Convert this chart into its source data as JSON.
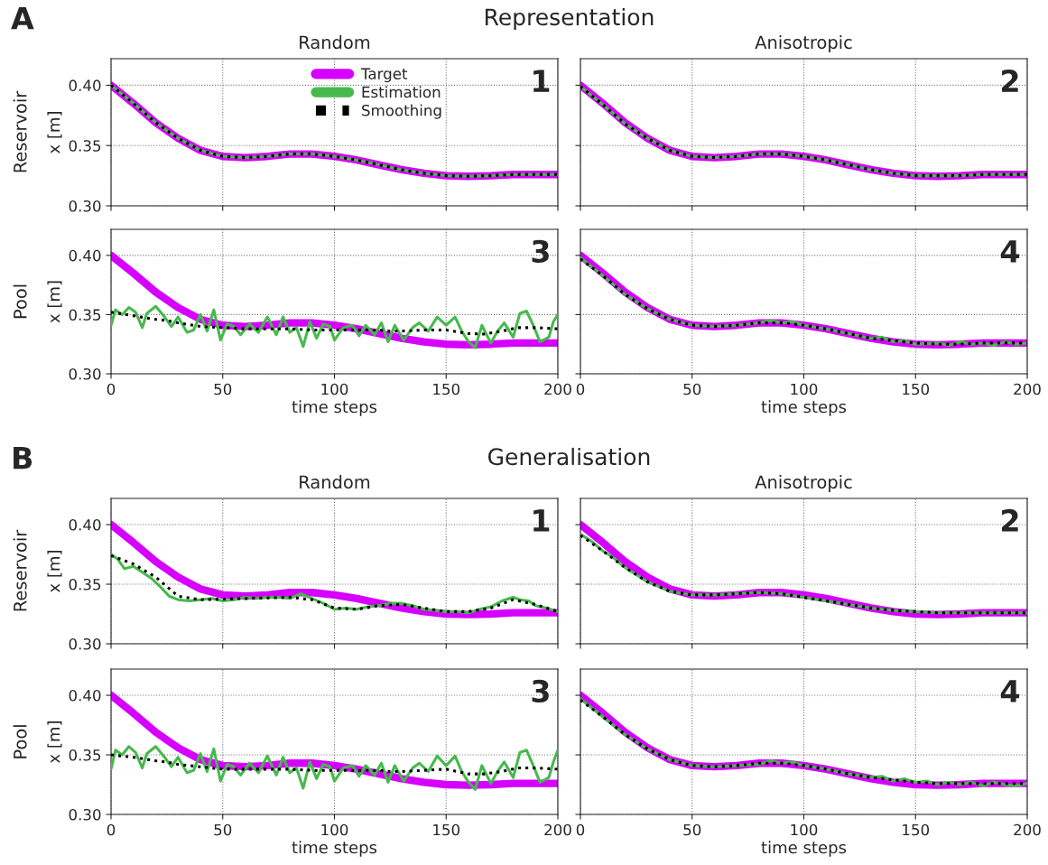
{
  "chart_data": [
    {
      "type": "line",
      "title": "Random",
      "ylabel": "x [m]",
      "annotations": [
        "1",
        "Reservoir",
        "A",
        "Representation"
      ],
      "xlim": [
        0,
        200
      ],
      "xticks": [
        0,
        50,
        100,
        150,
        200
      ],
      "ylim": [
        0.3,
        0.422
      ],
      "yticks": [
        {
          "value": 0.3,
          "label": "0.30"
        },
        {
          "value": 0.35,
          "label": "0.35"
        },
        {
          "value": 0.4,
          "label": "0.40"
        }
      ],
      "grid": true,
      "tick_labels": "y",
      "legend": "top",
      "series": [
        {
          "name": "Target",
          "color": "#d600ff",
          "line_style": "solid",
          "x": [
            0,
            10,
            20,
            30,
            40,
            50,
            60,
            70,
            80,
            90,
            100,
            110,
            120,
            130,
            140,
            150,
            160,
            170,
            180,
            190,
            200
          ],
          "values": [
            0.4,
            0.385,
            0.369,
            0.356,
            0.346,
            0.341,
            0.34,
            0.341,
            0.343,
            0.343,
            0.341,
            0.338,
            0.334,
            0.33,
            0.327,
            0.325,
            0.3245,
            0.325,
            0.326,
            0.326,
            0.326
          ]
        },
        {
          "name": "Estimation",
          "color": "#46b94c",
          "line_style": "solid",
          "x": [
            0,
            10,
            20,
            30,
            40,
            50,
            60,
            70,
            80,
            90,
            100,
            110,
            120,
            130,
            140,
            150,
            160,
            170,
            180,
            190,
            200
          ],
          "values": [
            0.4,
            0.385,
            0.369,
            0.356,
            0.346,
            0.341,
            0.34,
            0.341,
            0.343,
            0.343,
            0.341,
            0.338,
            0.334,
            0.33,
            0.327,
            0.325,
            0.3245,
            0.325,
            0.326,
            0.326,
            0.326
          ]
        },
        {
          "name": "Smoothing",
          "color": "#000000",
          "line_style": "dotted",
          "x": [
            0,
            10,
            20,
            30,
            40,
            50,
            60,
            70,
            80,
            90,
            100,
            110,
            120,
            130,
            140,
            150,
            160,
            170,
            180,
            190,
            200
          ],
          "values": [
            0.4,
            0.385,
            0.369,
            0.356,
            0.346,
            0.341,
            0.34,
            0.341,
            0.343,
            0.343,
            0.341,
            0.338,
            0.334,
            0.33,
            0.327,
            0.325,
            0.3245,
            0.325,
            0.326,
            0.326,
            0.326
          ]
        }
      ]
    },
    {
      "type": "line",
      "title": "Anisotropic",
      "annotations": [
        "2"
      ],
      "xlim": [
        0,
        200
      ],
      "xticks": [
        0,
        50,
        100,
        150,
        200
      ],
      "ylim": [
        0.3,
        0.422
      ],
      "yticks": [
        {
          "value": 0.3,
          "label": null
        },
        {
          "value": 0.35,
          "label": null
        },
        {
          "value": 0.4,
          "label": null
        }
      ],
      "grid": true,
      "tick_labels": false,
      "series": [
        {
          "color": "#d600ff",
          "line_style": "solid",
          "x": [
            0,
            10,
            20,
            30,
            40,
            50,
            60,
            70,
            80,
            90,
            100,
            110,
            120,
            130,
            140,
            150,
            160,
            170,
            180,
            190,
            200
          ],
          "values": [
            0.4,
            0.385,
            0.369,
            0.356,
            0.346,
            0.341,
            0.34,
            0.341,
            0.343,
            0.343,
            0.341,
            0.338,
            0.334,
            0.33,
            0.327,
            0.325,
            0.3245,
            0.325,
            0.326,
            0.326,
            0.326
          ]
        },
        {
          "color": "#46b94c",
          "line_style": "solid",
          "x": [
            0,
            10,
            20,
            30,
            40,
            50,
            60,
            70,
            80,
            90,
            100,
            110,
            120,
            130,
            140,
            150,
            160,
            170,
            180,
            190,
            200
          ],
          "values": [
            0.399,
            0.384,
            0.368,
            0.356,
            0.346,
            0.341,
            0.34,
            0.341,
            0.343,
            0.343,
            0.341,
            0.338,
            0.334,
            0.33,
            0.327,
            0.325,
            0.325,
            0.325,
            0.326,
            0.326,
            0.326
          ]
        },
        {
          "color": "#000000",
          "line_style": "dotted",
          "x": [
            0,
            10,
            20,
            30,
            40,
            50,
            60,
            70,
            80,
            90,
            100,
            110,
            120,
            130,
            140,
            150,
            160,
            170,
            180,
            190,
            200
          ],
          "values": [
            0.399,
            0.384,
            0.368,
            0.356,
            0.346,
            0.341,
            0.34,
            0.341,
            0.343,
            0.343,
            0.341,
            0.338,
            0.334,
            0.33,
            0.327,
            0.325,
            0.325,
            0.325,
            0.326,
            0.326,
            0.326
          ]
        }
      ]
    },
    {
      "type": "line",
      "xlabel": "time steps",
      "ylabel": "x [m]",
      "annotations": [
        "3",
        "Pool"
      ],
      "xlim": [
        0,
        200
      ],
      "xticks": [
        0,
        50,
        100,
        150,
        200
      ],
      "ylim": [
        0.3,
        0.422
      ],
      "yticks": [
        {
          "value": 0.3,
          "label": "0.30"
        },
        {
          "value": 0.35,
          "label": "0.35"
        },
        {
          "value": 0.4,
          "label": "0.40"
        }
      ],
      "grid": true,
      "series": [
        {
          "color": "#d600ff",
          "line_style": "solid",
          "x": [
            0,
            10,
            20,
            30,
            40,
            50,
            60,
            70,
            80,
            90,
            100,
            110,
            120,
            130,
            140,
            150,
            160,
            170,
            180,
            190,
            200
          ],
          "values": [
            0.4,
            0.385,
            0.369,
            0.356,
            0.346,
            0.341,
            0.34,
            0.341,
            0.343,
            0.343,
            0.341,
            0.338,
            0.334,
            0.33,
            0.327,
            0.325,
            0.3245,
            0.325,
            0.326,
            0.326,
            0.326
          ]
        },
        {
          "color": "#46b94c",
          "line_style": "solid",
          "x": [
            0,
            2,
            5,
            8,
            11,
            14,
            16,
            20,
            24,
            27,
            30,
            34,
            37,
            40,
            43,
            46,
            49,
            52,
            55,
            58,
            62,
            66,
            70,
            74,
            77,
            80,
            83,
            86,
            89,
            92,
            95,
            98,
            100,
            104,
            108,
            111,
            114,
            118,
            121,
            124,
            127,
            131,
            135,
            138,
            142,
            146,
            150,
            154,
            157,
            160,
            163,
            166,
            170,
            173,
            176,
            180,
            183,
            186,
            189,
            192,
            196,
            198,
            200
          ],
          "values": [
            0.341,
            0.354,
            0.35,
            0.356,
            0.352,
            0.339,
            0.351,
            0.357,
            0.348,
            0.34,
            0.348,
            0.335,
            0.337,
            0.35,
            0.336,
            0.354,
            0.3285,
            0.342,
            0.34,
            0.333,
            0.342,
            0.335,
            0.348,
            0.333,
            0.348,
            0.335,
            0.339,
            0.323,
            0.344,
            0.33,
            0.342,
            0.34,
            0.3285,
            0.339,
            0.341,
            0.332,
            0.341,
            0.333,
            0.343,
            0.327,
            0.341,
            0.3285,
            0.339,
            0.343,
            0.336,
            0.348,
            0.341,
            0.348,
            0.336,
            0.327,
            0.322,
            0.341,
            0.326,
            0.336,
            0.343,
            0.331,
            0.351,
            0.353,
            0.341,
            0.327,
            0.331,
            0.344,
            0.35
          ]
        },
        {
          "color": "#000000",
          "line_style": "dotted",
          "x": [
            0,
            10,
            20,
            25,
            30,
            40,
            50,
            60,
            70,
            80,
            90,
            100,
            110,
            120,
            125,
            130,
            140,
            150,
            160,
            167,
            175,
            182,
            190,
            200
          ],
          "values": [
            0.352,
            0.349,
            0.346,
            0.345,
            0.343,
            0.34,
            0.339,
            0.338,
            0.338,
            0.338,
            0.337,
            0.337,
            0.337,
            0.337,
            0.336,
            0.336,
            0.337,
            0.337,
            0.334,
            0.3336,
            0.336,
            0.339,
            0.339,
            0.338
          ]
        }
      ]
    },
    {
      "type": "line",
      "xlabel": "time steps",
      "annotations": [
        "4"
      ],
      "xlim": [
        0,
        200
      ],
      "xticks": [
        0,
        50,
        100,
        150,
        200
      ],
      "ylim": [
        0.3,
        0.422
      ],
      "yticks": [
        {
          "value": 0.3,
          "label": null
        },
        {
          "value": 0.35,
          "label": null
        },
        {
          "value": 0.4,
          "label": null
        }
      ],
      "grid": true,
      "tick_labels": "x",
      "series": [
        {
          "color": "#d600ff",
          "line_style": "solid",
          "x": [
            0,
            10,
            20,
            30,
            40,
            50,
            60,
            70,
            80,
            90,
            100,
            110,
            120,
            130,
            140,
            150,
            160,
            170,
            180,
            190,
            200
          ],
          "values": [
            0.4,
            0.385,
            0.369,
            0.356,
            0.346,
            0.341,
            0.34,
            0.341,
            0.343,
            0.343,
            0.341,
            0.338,
            0.334,
            0.33,
            0.327,
            0.325,
            0.3245,
            0.325,
            0.326,
            0.326,
            0.326
          ]
        },
        {
          "color": "#46b94c",
          "line_style": "solid",
          "x": [
            0,
            10,
            20,
            30,
            40,
            50,
            60,
            70,
            80,
            85,
            90,
            95,
            100,
            110,
            120,
            130,
            135,
            140,
            145,
            150,
            160,
            165,
            170,
            175,
            180,
            185,
            190,
            195,
            200
          ],
          "values": [
            0.398,
            0.383,
            0.367,
            0.355,
            0.346,
            0.341,
            0.34,
            0.341,
            0.343,
            0.345,
            0.343,
            0.344,
            0.341,
            0.338,
            0.334,
            0.33,
            0.331,
            0.327,
            0.328,
            0.325,
            0.326,
            0.324,
            0.327,
            0.325,
            0.326,
            0.324,
            0.327,
            0.325,
            0.326
          ]
        },
        {
          "color": "#000000",
          "line_style": "dotted",
          "x": [
            0,
            10,
            20,
            30,
            40,
            50,
            60,
            70,
            80,
            90,
            100,
            110,
            120,
            130,
            140,
            150,
            160,
            170,
            180,
            190,
            200
          ],
          "values": [
            0.397,
            0.383,
            0.367,
            0.355,
            0.346,
            0.341,
            0.34,
            0.341,
            0.343,
            0.343,
            0.341,
            0.338,
            0.334,
            0.33,
            0.328,
            0.326,
            0.325,
            0.325,
            0.326,
            0.326,
            0.326
          ]
        }
      ]
    },
    {
      "type": "line",
      "title": "Random",
      "ylabel": "x [m]",
      "annotations": [
        "1",
        "Reservoir",
        "B",
        "Generalisation"
      ],
      "xlim": [
        0,
        200
      ],
      "xticks": [
        0,
        50,
        100,
        150,
        200
      ],
      "ylim": [
        0.3,
        0.422
      ],
      "yticks": [
        {
          "value": 0.3,
          "label": "0.30"
        },
        {
          "value": 0.35,
          "label": "0.35"
        },
        {
          "value": 0.4,
          "label": "0.40"
        }
      ],
      "grid": true,
      "tick_labels": "y",
      "series": [
        {
          "color": "#d600ff",
          "line_style": "solid",
          "x": [
            0,
            10,
            20,
            30,
            40,
            50,
            60,
            70,
            80,
            90,
            100,
            110,
            120,
            130,
            140,
            150,
            160,
            170,
            180,
            190,
            200
          ],
          "values": [
            0.4,
            0.385,
            0.369,
            0.356,
            0.346,
            0.341,
            0.34,
            0.341,
            0.343,
            0.343,
            0.341,
            0.338,
            0.334,
            0.33,
            0.327,
            0.325,
            0.3245,
            0.325,
            0.326,
            0.326,
            0.326
          ]
        },
        {
          "color": "#46b94c",
          "line_style": "solid",
          "x": [
            0,
            3,
            6,
            10,
            14,
            18,
            22,
            26,
            30,
            35,
            40,
            45,
            50,
            55,
            60,
            65,
            70,
            75,
            80,
            85,
            90,
            95,
            100,
            105,
            110,
            115,
            120,
            125,
            130,
            135,
            140,
            145,
            150,
            155,
            160,
            165,
            170,
            175,
            180,
            183,
            187,
            190,
            195,
            200
          ],
          "values": [
            0.375,
            0.371,
            0.363,
            0.365,
            0.36,
            0.355,
            0.348,
            0.34,
            0.337,
            0.336,
            0.337,
            0.338,
            0.336,
            0.337,
            0.339,
            0.338,
            0.339,
            0.339,
            0.338,
            0.342,
            0.338,
            0.334,
            0.329,
            0.33,
            0.329,
            0.331,
            0.332,
            0.334,
            0.334,
            0.332,
            0.329,
            0.328,
            0.327,
            0.327,
            0.326,
            0.329,
            0.331,
            0.336,
            0.339,
            0.337,
            0.336,
            0.332,
            0.33,
            0.327
          ]
        },
        {
          "color": "#000000",
          "line_style": "dotted",
          "x": [
            0,
            10,
            20,
            30,
            40,
            60,
            80,
            90,
            100,
            110,
            120,
            130,
            140,
            150,
            160,
            170,
            180,
            190,
            200
          ],
          "values": [
            0.374,
            0.367,
            0.356,
            0.34,
            0.337,
            0.338,
            0.339,
            0.337,
            0.33,
            0.329,
            0.332,
            0.333,
            0.33,
            0.327,
            0.327,
            0.33,
            0.337,
            0.333,
            0.327
          ]
        }
      ]
    },
    {
      "type": "line",
      "title": "Anisotropic",
      "annotations": [
        "2"
      ],
      "xlim": [
        0,
        200
      ],
      "xticks": [
        0,
        50,
        100,
        150,
        200
      ],
      "ylim": [
        0.3,
        0.422
      ],
      "yticks": [
        {
          "value": 0.3,
          "label": null
        },
        {
          "value": 0.35,
          "label": null
        },
        {
          "value": 0.4,
          "label": null
        }
      ],
      "grid": true,
      "tick_labels": false,
      "series": [
        {
          "color": "#d600ff",
          "line_style": "solid",
          "x": [
            0,
            10,
            20,
            30,
            40,
            50,
            60,
            70,
            80,
            90,
            100,
            110,
            120,
            130,
            140,
            150,
            160,
            170,
            180,
            190,
            200
          ],
          "values": [
            0.4,
            0.385,
            0.369,
            0.356,
            0.346,
            0.341,
            0.34,
            0.341,
            0.343,
            0.343,
            0.341,
            0.338,
            0.334,
            0.33,
            0.327,
            0.325,
            0.3245,
            0.325,
            0.326,
            0.326,
            0.326
          ]
        },
        {
          "color": "#46b94c",
          "line_style": "solid",
          "x": [
            0,
            5,
            10,
            15,
            20,
            30,
            40,
            50,
            60,
            70,
            80,
            90,
            100,
            110,
            120,
            130,
            140,
            150,
            160,
            170,
            180,
            190,
            200
          ],
          "values": [
            0.392,
            0.386,
            0.378,
            0.372,
            0.364,
            0.352,
            0.344,
            0.341,
            0.341,
            0.342,
            0.343,
            0.342,
            0.339,
            0.336,
            0.333,
            0.33,
            0.328,
            0.327,
            0.326,
            0.326,
            0.326,
            0.326,
            0.326
          ]
        },
        {
          "color": "#000000",
          "line_style": "dotted",
          "x": [
            0,
            10,
            20,
            30,
            40,
            50,
            60,
            70,
            80,
            90,
            100,
            110,
            120,
            130,
            140,
            150,
            160,
            170,
            180,
            190,
            200
          ],
          "values": [
            0.391,
            0.378,
            0.364,
            0.352,
            0.344,
            0.341,
            0.341,
            0.342,
            0.343,
            0.342,
            0.339,
            0.336,
            0.333,
            0.33,
            0.328,
            0.327,
            0.326,
            0.326,
            0.326,
            0.326,
            0.326
          ]
        }
      ]
    },
    {
      "type": "line",
      "xlabel": "time steps",
      "ylabel": "x [m]",
      "annotations": [
        "3",
        "Pool"
      ],
      "xlim": [
        0,
        200
      ],
      "xticks": [
        0,
        50,
        100,
        150,
        200
      ],
      "ylim": [
        0.3,
        0.422
      ],
      "yticks": [
        {
          "value": 0.3,
          "label": "0.30"
        },
        {
          "value": 0.35,
          "label": "0.35"
        },
        {
          "value": 0.4,
          "label": "0.40"
        }
      ],
      "grid": true,
      "series": [
        {
          "color": "#d600ff",
          "line_style": "solid",
          "x": [
            0,
            10,
            20,
            30,
            40,
            50,
            60,
            70,
            80,
            90,
            100,
            110,
            120,
            130,
            140,
            150,
            160,
            170,
            180,
            190,
            200
          ],
          "values": [
            0.4,
            0.385,
            0.369,
            0.356,
            0.346,
            0.341,
            0.34,
            0.341,
            0.343,
            0.343,
            0.341,
            0.338,
            0.334,
            0.33,
            0.327,
            0.325,
            0.3245,
            0.325,
            0.326,
            0.326,
            0.326
          ]
        },
        {
          "color": "#46b94c",
          "line_style": "solid",
          "x": [
            0,
            2,
            5,
            8,
            11,
            14,
            16,
            20,
            24,
            27,
            30,
            34,
            37,
            40,
            43,
            46,
            49,
            52,
            55,
            58,
            62,
            66,
            70,
            74,
            77,
            80,
            83,
            86,
            89,
            92,
            95,
            98,
            100,
            104,
            108,
            111,
            114,
            118,
            121,
            124,
            127,
            131,
            135,
            138,
            142,
            146,
            150,
            154,
            157,
            160,
            163,
            166,
            170,
            173,
            176,
            180,
            183,
            186,
            189,
            192,
            196,
            198,
            200
          ],
          "values": [
            0.338,
            0.354,
            0.35,
            0.357,
            0.352,
            0.339,
            0.351,
            0.357,
            0.348,
            0.34,
            0.348,
            0.335,
            0.337,
            0.351,
            0.336,
            0.355,
            0.328,
            0.342,
            0.34,
            0.333,
            0.343,
            0.335,
            0.349,
            0.333,
            0.348,
            0.335,
            0.339,
            0.322,
            0.344,
            0.33,
            0.342,
            0.34,
            0.328,
            0.339,
            0.341,
            0.332,
            0.341,
            0.333,
            0.343,
            0.327,
            0.341,
            0.328,
            0.339,
            0.343,
            0.336,
            0.349,
            0.341,
            0.349,
            0.336,
            0.327,
            0.321,
            0.341,
            0.326,
            0.336,
            0.344,
            0.331,
            0.352,
            0.354,
            0.341,
            0.327,
            0.331,
            0.344,
            0.354
          ]
        },
        {
          "color": "#000000",
          "line_style": "dotted",
          "x": [
            0,
            10,
            20,
            25,
            30,
            40,
            50,
            60,
            70,
            80,
            90,
            100,
            110,
            120,
            125,
            130,
            140,
            150,
            160,
            167,
            175,
            182,
            190,
            200
          ],
          "values": [
            0.35,
            0.348,
            0.345,
            0.344,
            0.342,
            0.34,
            0.338,
            0.338,
            0.338,
            0.338,
            0.337,
            0.337,
            0.337,
            0.337,
            0.336,
            0.336,
            0.337,
            0.338,
            0.334,
            0.334,
            0.336,
            0.339,
            0.339,
            0.338
          ]
        }
      ]
    },
    {
      "type": "line",
      "xlabel": "time steps",
      "annotations": [
        "4"
      ],
      "xlim": [
        0,
        200
      ],
      "xticks": [
        0,
        50,
        100,
        150,
        200
      ],
      "ylim": [
        0.3,
        0.422
      ],
      "yticks": [
        {
          "value": 0.3,
          "label": null
        },
        {
          "value": 0.35,
          "label": null
        },
        {
          "value": 0.4,
          "label": null
        }
      ],
      "grid": true,
      "tick_labels": "x",
      "series": [
        {
          "color": "#d600ff",
          "line_style": "solid",
          "x": [
            0,
            10,
            20,
            30,
            40,
            50,
            60,
            70,
            80,
            90,
            100,
            110,
            120,
            130,
            140,
            150,
            160,
            170,
            180,
            190,
            200
          ],
          "values": [
            0.4,
            0.385,
            0.369,
            0.356,
            0.346,
            0.341,
            0.34,
            0.341,
            0.343,
            0.343,
            0.341,
            0.338,
            0.334,
            0.33,
            0.327,
            0.325,
            0.3245,
            0.325,
            0.326,
            0.326,
            0.326
          ]
        },
        {
          "color": "#46b94c",
          "line_style": "solid",
          "x": [
            0,
            10,
            20,
            30,
            40,
            50,
            60,
            70,
            80,
            85,
            90,
            95,
            100,
            110,
            120,
            130,
            135,
            140,
            145,
            150,
            155,
            160,
            165,
            170,
            175,
            180,
            185,
            190,
            195,
            200
          ],
          "values": [
            0.397,
            0.382,
            0.367,
            0.355,
            0.346,
            0.341,
            0.34,
            0.341,
            0.342,
            0.345,
            0.343,
            0.344,
            0.341,
            0.338,
            0.334,
            0.331,
            0.332,
            0.328,
            0.33,
            0.327,
            0.328,
            0.325,
            0.327,
            0.325,
            0.327,
            0.324,
            0.327,
            0.325,
            0.324,
            0.326
          ]
        },
        {
          "color": "#000000",
          "line_style": "dotted",
          "x": [
            0,
            10,
            20,
            30,
            40,
            50,
            60,
            70,
            80,
            90,
            100,
            110,
            120,
            130,
            140,
            150,
            160,
            170,
            180,
            190,
            200
          ],
          "values": [
            0.396,
            0.382,
            0.367,
            0.355,
            0.346,
            0.341,
            0.34,
            0.341,
            0.343,
            0.343,
            0.341,
            0.338,
            0.334,
            0.331,
            0.329,
            0.327,
            0.326,
            0.326,
            0.326,
            0.326,
            0.326
          ]
        }
      ]
    }
  ]
}
